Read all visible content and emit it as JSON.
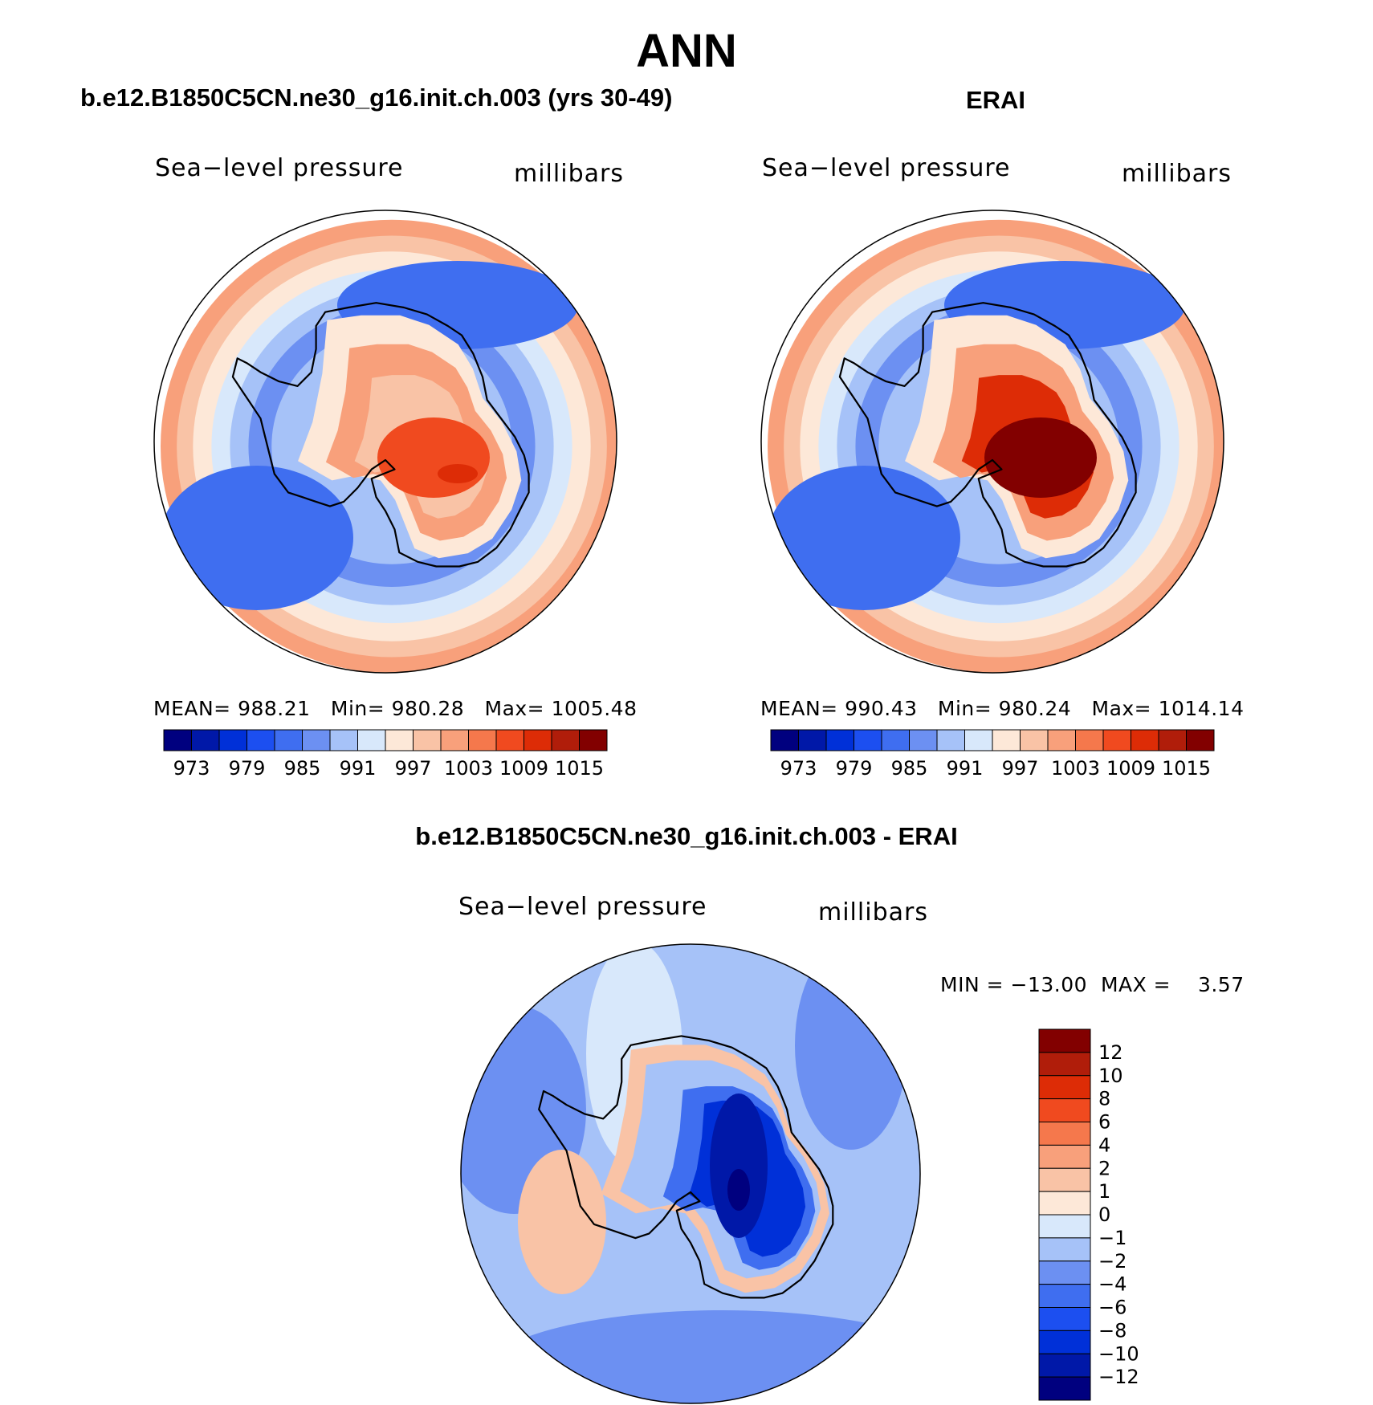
{
  "figure": {
    "season": "ANN",
    "left_title": "b.e12.B1850C5CN.ne30_g16.init.ch.003 (yrs 30-49)",
    "right_title": "ERAI",
    "diff_title": "b.e12.B1850C5CN.ne30_g16.init.ch.003 - ERAI"
  },
  "panels": {
    "model": {
      "variable": "Sea−level pressure",
      "units": "millibars",
      "stats": {
        "mean_label": "MEAN=",
        "mean": "988.21",
        "min_label": "Min=",
        "min": "980.28",
        "max_label": "Max=",
        "max": "1005.48"
      }
    },
    "obs": {
      "variable": "Sea−level pressure",
      "units": "millibars",
      "stats": {
        "mean_label": "MEAN=",
        "mean": "990.43",
        "min_label": "Min=",
        "min": "980.24",
        "max_label": "Max=",
        "max": "1014.14"
      }
    },
    "diff": {
      "variable": "Sea−level pressure",
      "units": "millibars",
      "stats": {
        "min_label": "MIN =",
        "min": "−13.00",
        "max_label": "MAX =",
        "max": "3.57"
      }
    }
  },
  "colors": {
    "abs_scale": [
      "#00007f",
      "#0018a8",
      "#0030d8",
      "#1c4ff0",
      "#3f6ef0",
      "#6c90f2",
      "#a6c2f8",
      "#d8e8fb",
      "#fde8d8",
      "#f9c3a6",
      "#f8a07b",
      "#f5784c",
      "#f04a1f",
      "#dd2c06",
      "#b01d0a",
      "#820000"
    ],
    "diff_scale": [
      "#00007f",
      "#0018a8",
      "#0030d8",
      "#1c4ff0",
      "#3f6ef0",
      "#6c90f2",
      "#a6c2f8",
      "#d8e8fb",
      "#fde8d8",
      "#f9c3a6",
      "#f8a07b",
      "#f5784c",
      "#f04a1f",
      "#dd2c06",
      "#b01d0a",
      "#820000"
    ]
  },
  "chart_data": {
    "type": "heatmap",
    "projection": "south polar stereographic",
    "maps": [
      {
        "name": "model",
        "colorbar_labels": [
          "973",
          "979",
          "985",
          "991",
          "997",
          "1003",
          "1009",
          "1015"
        ],
        "levels": [
          970,
          973,
          976,
          979,
          982,
          985,
          988,
          991,
          994,
          997,
          1000,
          1003,
          1006,
          1009,
          1012,
          1015
        ],
        "field": {
          "ring": 982,
          "interior": 996,
          "mid": 988,
          "outer": 998,
          "high_spot": 1003
        }
      },
      {
        "name": "obs",
        "colorbar_labels": [
          "973",
          "979",
          "985",
          "991",
          "997",
          "1003",
          "1009",
          "1015"
        ],
        "levels": [
          970,
          973,
          976,
          979,
          982,
          985,
          988,
          991,
          994,
          997,
          1000,
          1003,
          1006,
          1009,
          1012,
          1015
        ],
        "field": {
          "ring": 982,
          "interior": 1006,
          "mid": 988,
          "outer": 998,
          "high_spot": 1012
        }
      },
      {
        "name": "diff",
        "colorbar_labels": [
          "12",
          "10",
          "8",
          "6",
          "4",
          "2",
          "1",
          "0",
          "−1",
          "−2",
          "−4",
          "−6",
          "−8",
          "−10",
          "−12"
        ],
        "levels": [
          -12,
          -10,
          -8,
          -6,
          -4,
          -2,
          -1,
          0,
          1,
          2,
          4,
          6,
          8,
          10,
          12
        ],
        "field": {
          "ocean": -1.5,
          "interior": -9,
          "coastal": 1,
          "min_spot": -13
        }
      }
    ]
  }
}
